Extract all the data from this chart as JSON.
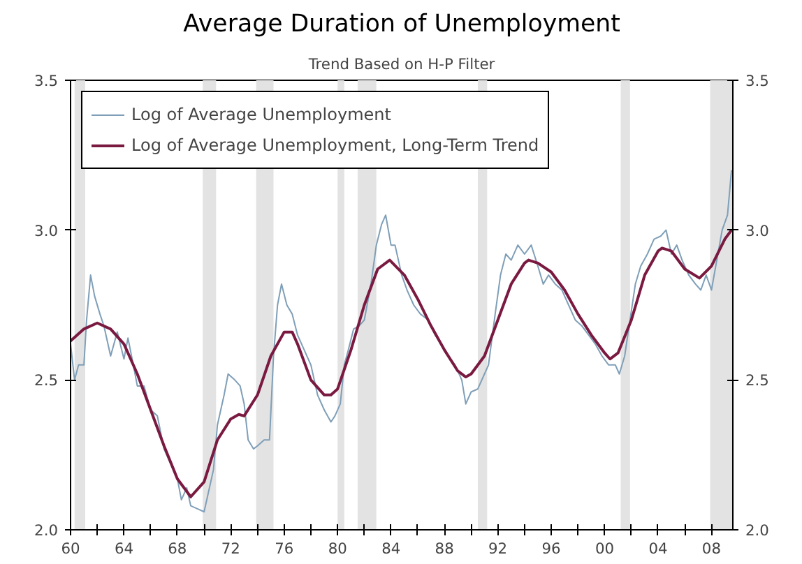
{
  "chart_data": {
    "type": "line",
    "title": "Average Duration of Unemployment",
    "subtitle": "Trend Based on H-P Filter",
    "xlim": [
      1960,
      2009.6
    ],
    "ylim": [
      2.0,
      3.5
    ],
    "yticks": [
      {
        "value": 2,
        "label": "2.0"
      },
      2.5,
      {
        "value": 3,
        "label": "3.0"
      },
      3.5
    ],
    "y2lim": [
      2.0,
      3.5
    ],
    "y2ticks": [
      {
        "value": 2,
        "label": "2.0"
      },
      2.5,
      {
        "value": 3,
        "label": "3.0"
      },
      3.5
    ],
    "xticks": [
      {
        "value": 1960,
        "label": "60"
      },
      {
        "value": 1962,
        "label": null
      },
      {
        "value": 1964,
        "label": "64"
      },
      {
        "value": 1966,
        "label": null
      },
      {
        "value": 1968,
        "label": "68"
      },
      {
        "value": 1970,
        "label": null
      },
      {
        "value": 1972,
        "label": "72"
      },
      {
        "value": 1974,
        "label": null
      },
      {
        "value": 1976,
        "label": "76"
      },
      {
        "value": 1978,
        "label": null
      },
      {
        "value": 1980,
        "label": "80"
      },
      {
        "value": 1982,
        "label": null
      },
      {
        "value": 1984,
        "label": "84"
      },
      {
        "value": 1986,
        "label": null
      },
      {
        "value": 1988,
        "label": "88"
      },
      {
        "value": 1990,
        "label": null
      },
      {
        "value": 1992,
        "label": "92"
      },
      {
        "value": 1994,
        "label": null
      },
      {
        "value": 1996,
        "label": "96"
      },
      {
        "value": 1998,
        "label": null
      },
      {
        "value": 2000,
        "label": "00"
      },
      {
        "value": 2002,
        "label": null
      },
      {
        "value": 2004,
        "label": "04"
      },
      {
        "value": 2006,
        "label": null
      },
      {
        "value": 2008,
        "label": "08"
      }
    ],
    "grid": false,
    "legend": "top left",
    "bands": [
      {
        "axis": "x",
        "from": 1960.3,
        "to": 1961.1,
        "color": "#e3e3e3"
      },
      {
        "axis": "x",
        "from": 1969.9,
        "to": 1970.9,
        "color": "#e3e3e3"
      },
      {
        "axis": "x",
        "from": 1973.9,
        "to": 1975.2,
        "color": "#e3e3e3"
      },
      {
        "axis": "x",
        "from": 1980.0,
        "to": 1980.5,
        "color": "#e3e3e3"
      },
      {
        "axis": "x",
        "from": 1981.5,
        "to": 1982.9,
        "color": "#e3e3e3"
      },
      {
        "axis": "x",
        "from": 1990.5,
        "to": 1991.2,
        "color": "#e3e3e3"
      },
      {
        "axis": "x",
        "from": 2001.2,
        "to": 2001.9,
        "color": "#e3e3e3"
      },
      {
        "axis": "x",
        "from": 2007.9,
        "to": 2009.6,
        "color": "#e3e3e3"
      }
    ],
    "series": [
      {
        "name": "Log of Average Unemployment",
        "color": "#7f9fb8",
        "x": [
          1960.0,
          1960.3,
          1960.6,
          1961.0,
          1961.2,
          1961.5,
          1961.8,
          1962.2,
          1962.5,
          1963.0,
          1963.5,
          1964.0,
          1964.3,
          1964.7,
          1965.0,
          1965.5,
          1966.0,
          1966.5,
          1967.0,
          1967.5,
          1968.0,
          1968.3,
          1968.7,
          1969.0,
          1969.5,
          1970.0,
          1970.3,
          1970.7,
          1971.0,
          1971.5,
          1971.8,
          1972.3,
          1972.7,
          1973.0,
          1973.3,
          1973.7,
          1974.0,
          1974.5,
          1974.9,
          1975.2,
          1975.5,
          1975.8,
          1976.2,
          1976.6,
          1977.0,
          1977.5,
          1978.0,
          1978.5,
          1979.0,
          1979.5,
          1979.8,
          1980.2,
          1980.5,
          1980.8,
          1981.2,
          1981.6,
          1982.0,
          1982.5,
          1982.9,
          1983.3,
          1983.6,
          1984.0,
          1984.3,
          1984.8,
          1985.2,
          1985.7,
          1986.2,
          1986.8,
          1987.3,
          1987.8,
          1988.3,
          1988.8,
          1989.3,
          1989.6,
          1990.0,
          1990.5,
          1991.0,
          1991.3,
          1991.8,
          1992.2,
          1992.6,
          1993.0,
          1993.5,
          1994.0,
          1994.5,
          1995.0,
          1995.4,
          1995.8,
          1996.3,
          1996.8,
          1997.3,
          1997.8,
          1998.3,
          1998.8,
          1999.3,
          1999.8,
          2000.3,
          2000.8,
          2001.1,
          2001.5,
          2001.9,
          2002.3,
          2002.7,
          2003.2,
          2003.7,
          2004.2,
          2004.6,
          2005.0,
          2005.4,
          2005.8,
          2006.3,
          2006.8,
          2007.2,
          2007.6,
          2008.0,
          2008.4,
          2008.8,
          2009.2,
          2009.5
        ],
        "values": [
          2.62,
          2.5,
          2.55,
          2.55,
          2.7,
          2.85,
          2.78,
          2.72,
          2.68,
          2.58,
          2.66,
          2.57,
          2.64,
          2.55,
          2.48,
          2.48,
          2.4,
          2.38,
          2.27,
          2.22,
          2.17,
          2.1,
          2.14,
          2.08,
          2.07,
          2.06,
          2.12,
          2.2,
          2.35,
          2.45,
          2.52,
          2.5,
          2.48,
          2.42,
          2.3,
          2.27,
          2.28,
          2.3,
          2.3,
          2.58,
          2.75,
          2.82,
          2.75,
          2.72,
          2.65,
          2.6,
          2.55,
          2.45,
          2.4,
          2.36,
          2.38,
          2.42,
          2.55,
          2.6,
          2.67,
          2.68,
          2.7,
          2.82,
          2.95,
          3.02,
          3.05,
          2.95,
          2.95,
          2.85,
          2.8,
          2.75,
          2.72,
          2.7,
          2.65,
          2.62,
          2.58,
          2.55,
          2.5,
          2.42,
          2.46,
          2.47,
          2.52,
          2.55,
          2.72,
          2.85,
          2.92,
          2.9,
          2.95,
          2.92,
          2.95,
          2.88,
          2.82,
          2.85,
          2.82,
          2.8,
          2.75,
          2.7,
          2.68,
          2.65,
          2.62,
          2.58,
          2.55,
          2.55,
          2.52,
          2.58,
          2.7,
          2.82,
          2.88,
          2.92,
          2.97,
          2.98,
          3.0,
          2.92,
          2.95,
          2.9,
          2.85,
          2.82,
          2.8,
          2.85,
          2.8,
          2.9,
          3.0,
          3.05,
          3.2
        ]
      },
      {
        "name": "Log of Average Unemployment, Long-Term Trend",
        "color": "#7a1a40",
        "x": [
          1960,
          1961,
          1962,
          1963,
          1964,
          1965,
          1966,
          1967,
          1968,
          1969,
          1970,
          1971,
          1972,
          1972.6,
          1973,
          1974,
          1975,
          1976,
          1976.6,
          1977,
          1978,
          1979,
          1979.5,
          1980,
          1981,
          1982,
          1983,
          1983.9,
          1985,
          1986,
          1987,
          1988,
          1989,
          1989.6,
          1990,
          1991,
          1992,
          1993,
          1994,
          1994.3,
          1995,
          1996,
          1997,
          1998,
          1999,
          2000,
          2000.4,
          2001,
          2002,
          2003,
          2004,
          2004.3,
          2005,
          2006,
          2007.1,
          2008,
          2009,
          2009.5
        ],
        "values": [
          2.63,
          2.67,
          2.69,
          2.67,
          2.62,
          2.52,
          2.4,
          2.28,
          2.17,
          2.11,
          2.16,
          2.3,
          2.37,
          2.385,
          2.38,
          2.45,
          2.58,
          2.66,
          2.66,
          2.62,
          2.5,
          2.45,
          2.45,
          2.47,
          2.6,
          2.75,
          2.87,
          2.9,
          2.85,
          2.77,
          2.68,
          2.6,
          2.53,
          2.51,
          2.52,
          2.58,
          2.7,
          2.82,
          2.89,
          2.9,
          2.89,
          2.86,
          2.8,
          2.72,
          2.65,
          2.59,
          2.57,
          2.59,
          2.7,
          2.85,
          2.93,
          2.94,
          2.93,
          2.87,
          2.84,
          2.88,
          2.97,
          3.0
        ]
      }
    ]
  }
}
